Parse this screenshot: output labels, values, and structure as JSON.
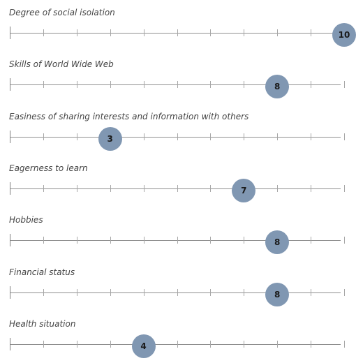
{
  "colors": {
    "knob": "#8097b2",
    "track": "#8f8f8f"
  },
  "scale": {
    "min": 0,
    "max": 10
  },
  "questions": [
    {
      "label": "Degree of social isolation",
      "value": 10
    },
    {
      "label": "Skills of World Wide Web",
      "value": 8
    },
    {
      "label": "Easiness of sharing interests and information with others",
      "value": 3
    },
    {
      "label": "Eagerness to learn",
      "value": 7
    },
    {
      "label": "Hobbies",
      "value": 8
    },
    {
      "label": "Financial status",
      "value": 8
    },
    {
      "label": "Health situation",
      "value": 4
    }
  ]
}
